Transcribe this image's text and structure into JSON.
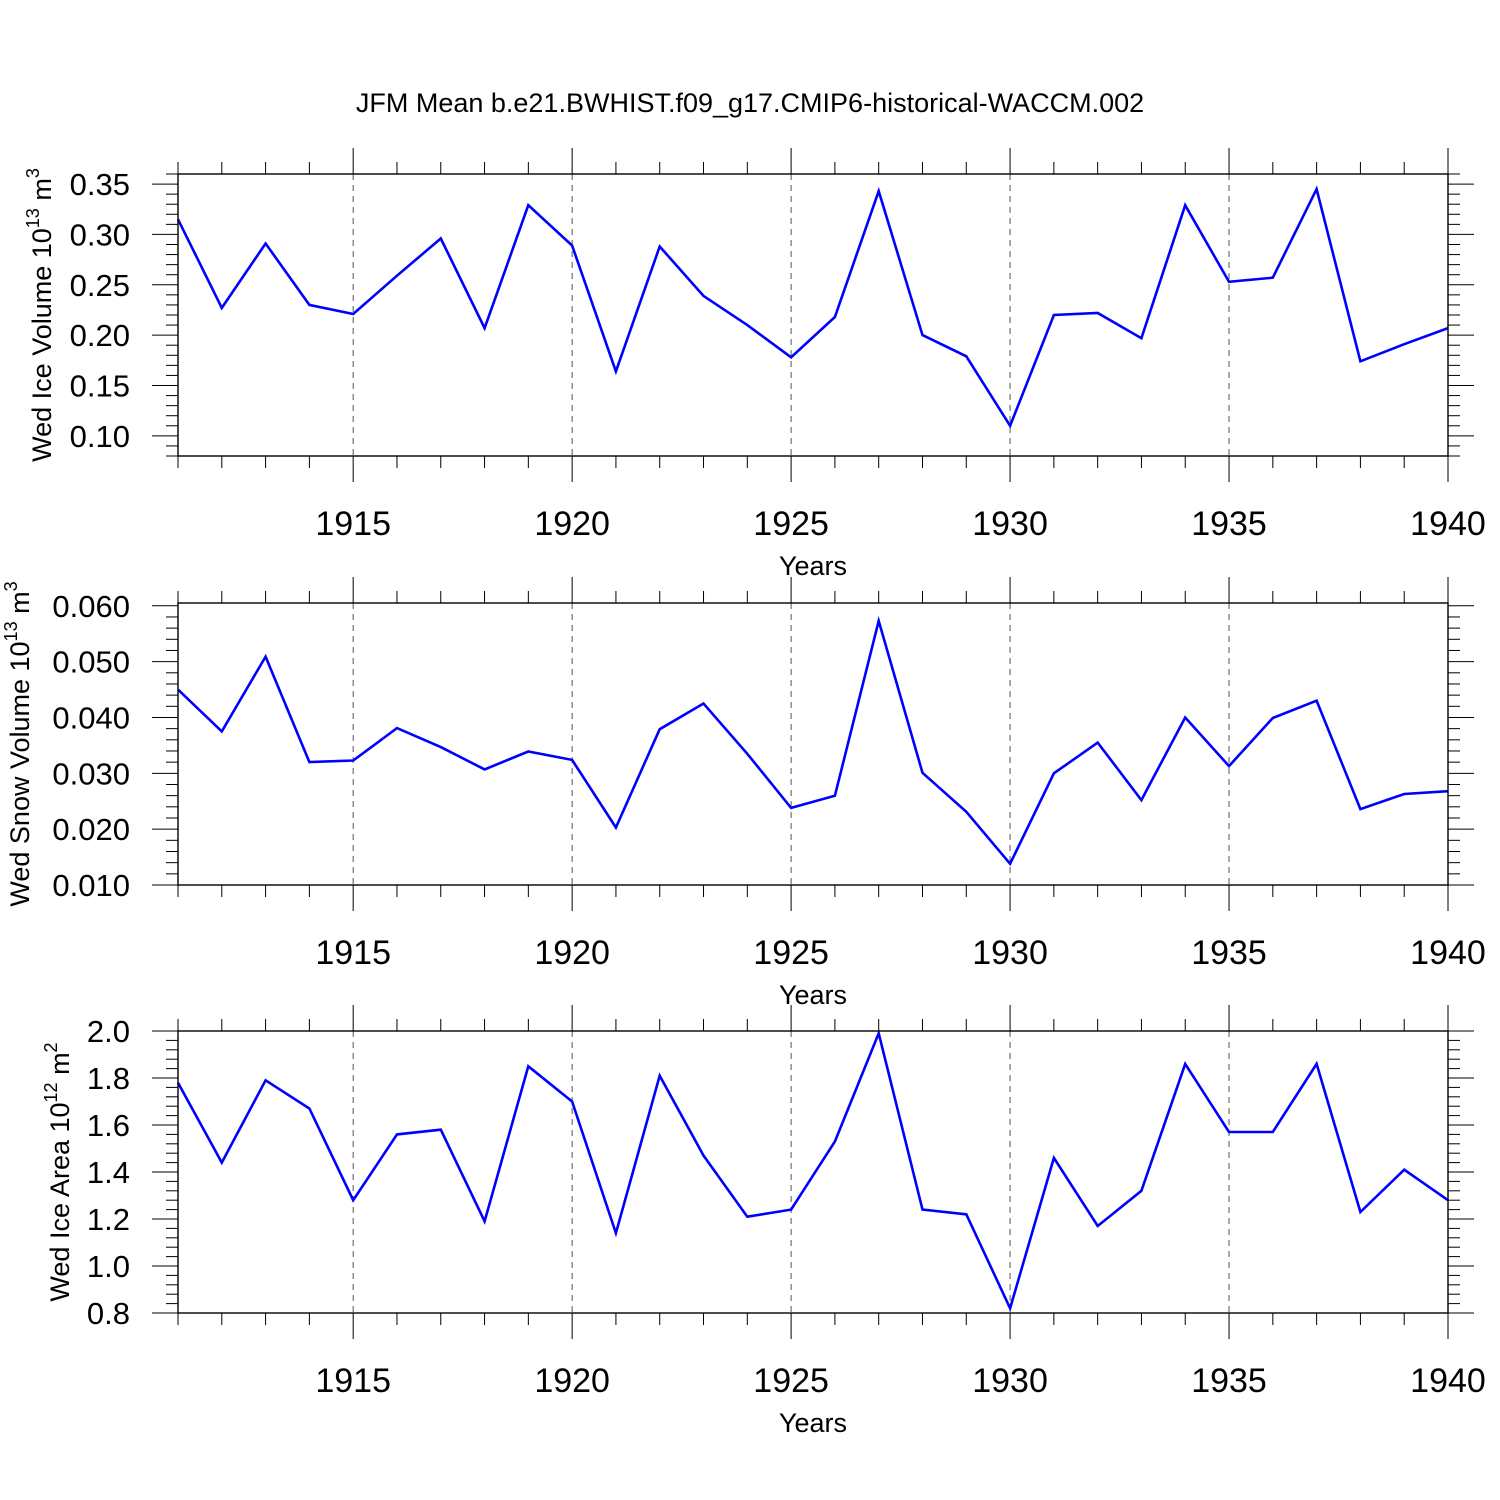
{
  "title": "JFM Mean b.e21.BWHIST.f09_g17.CMIP6-historical-WACCM.002",
  "line_color": "#0000ff",
  "chart_data": [
    {
      "type": "line",
      "ylabel": {
        "main": "Wed Ice Volume 10",
        "sup": "13",
        "unit": " m",
        "unit_sup": "3"
      },
      "xlabel": "Years",
      "xlim": [
        1911,
        1940
      ],
      "ylim": [
        0.08,
        0.36
      ],
      "xticks": [
        1915,
        1920,
        1925,
        1930,
        1935,
        1940
      ],
      "xtick_labels": [
        "1915",
        "1920",
        "1925",
        "1930",
        "1935",
        "1940"
      ],
      "yticks": [
        0.1,
        0.15,
        0.2,
        0.25,
        0.3,
        0.35
      ],
      "ytick_labels": [
        "0.10",
        "0.15",
        "0.20",
        "0.25",
        "0.30",
        "0.35"
      ],
      "grid_x": "dashed",
      "x": [
        1911,
        1912,
        1913,
        1914,
        1915,
        1916,
        1917,
        1918,
        1919,
        1920,
        1921,
        1922,
        1923,
        1924,
        1925,
        1926,
        1927,
        1928,
        1929,
        1930,
        1931,
        1932,
        1933,
        1934,
        1935,
        1936,
        1937,
        1938,
        1939,
        1940
      ],
      "values": [
        0.315,
        0.227,
        0.291,
        0.23,
        0.221,
        0.259,
        0.296,
        0.207,
        0.329,
        0.289,
        0.164,
        0.288,
        0.239,
        0.21,
        0.178,
        0.218,
        0.343,
        0.2,
        0.179,
        0.11,
        0.22,
        0.222,
        0.197,
        0.329,
        0.253,
        0.257,
        0.345,
        0.174,
        0.191,
        0.207
      ]
    },
    {
      "type": "line",
      "ylabel": {
        "main": "Wed Snow Volume 10",
        "sup": "13",
        "unit": " m",
        "unit_sup": "3"
      },
      "xlabel": "Years",
      "xlim": [
        1911,
        1940
      ],
      "ylim": [
        0.01,
        0.0605
      ],
      "xticks": [
        1915,
        1920,
        1925,
        1930,
        1935,
        1940
      ],
      "xtick_labels": [
        "1915",
        "1920",
        "1925",
        "1930",
        "1935",
        "1940"
      ],
      "yticks": [
        0.01,
        0.02,
        0.03,
        0.04,
        0.05,
        0.06
      ],
      "ytick_labels": [
        "0.010",
        "0.020",
        "0.030",
        "0.040",
        "0.050",
        "0.060"
      ],
      "grid_x": "dashed",
      "x": [
        1911,
        1912,
        1913,
        1914,
        1915,
        1916,
        1917,
        1918,
        1919,
        1920,
        1921,
        1922,
        1923,
        1924,
        1925,
        1926,
        1927,
        1928,
        1929,
        1930,
        1931,
        1932,
        1933,
        1934,
        1935,
        1936,
        1937,
        1938,
        1939,
        1940
      ],
      "values": [
        0.045,
        0.0375,
        0.0509,
        0.032,
        0.0323,
        0.0381,
        0.0347,
        0.0307,
        0.0339,
        0.0324,
        0.0203,
        0.0379,
        0.0425,
        0.0335,
        0.0238,
        0.026,
        0.0573,
        0.0301,
        0.0231,
        0.0138,
        0.03,
        0.0355,
        0.0252,
        0.04,
        0.0313,
        0.0399,
        0.043,
        0.0236,
        0.0263,
        0.0268
      ]
    },
    {
      "type": "line",
      "ylabel": {
        "main": "Wed Ice Area 10",
        "sup": "12",
        "unit": " m",
        "unit_sup": "2"
      },
      "xlabel": "Years",
      "xlim": [
        1911,
        1940
      ],
      "ylim": [
        0.8,
        2.0
      ],
      "xticks": [
        1915,
        1920,
        1925,
        1930,
        1935,
        1940
      ],
      "xtick_labels": [
        "1915",
        "1920",
        "1925",
        "1930",
        "1935",
        "1940"
      ],
      "yticks": [
        0.8,
        1.0,
        1.2,
        1.4,
        1.6,
        1.8,
        2.0
      ],
      "ytick_labels": [
        "0.8",
        "1.0",
        "1.2",
        "1.4",
        "1.6",
        "1.8",
        "2.0"
      ],
      "grid_x": "dashed",
      "x": [
        1911,
        1912,
        1913,
        1914,
        1915,
        1916,
        1917,
        1918,
        1919,
        1920,
        1921,
        1922,
        1923,
        1924,
        1925,
        1926,
        1927,
        1928,
        1929,
        1930,
        1931,
        1932,
        1933,
        1934,
        1935,
        1936,
        1937,
        1938,
        1939,
        1940
      ],
      "values": [
        1.78,
        1.44,
        1.79,
        1.67,
        1.28,
        1.56,
        1.58,
        1.19,
        1.85,
        1.7,
        1.14,
        1.81,
        1.47,
        1.21,
        1.24,
        1.53,
        1.99,
        1.24,
        1.22,
        0.82,
        1.46,
        1.17,
        1.32,
        1.86,
        1.57,
        1.57,
        1.86,
        1.23,
        1.41,
        1.28
      ]
    }
  ]
}
